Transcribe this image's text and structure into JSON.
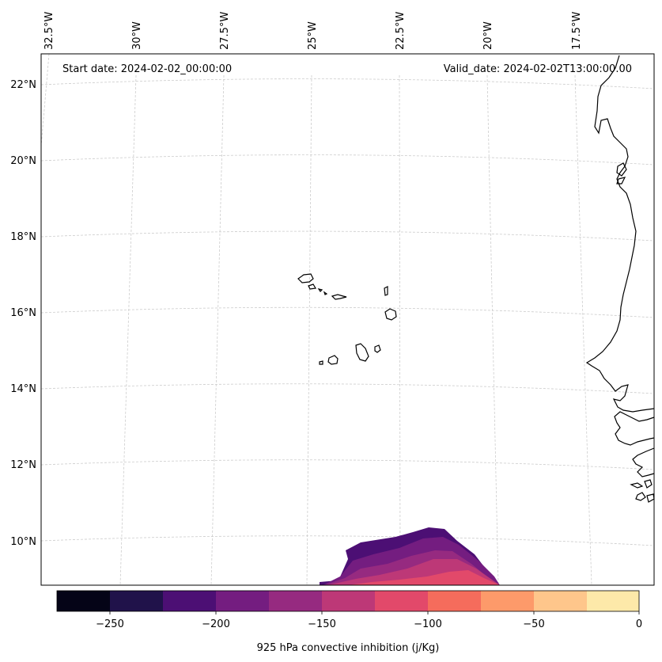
{
  "map": {
    "start_label": "Start date: 2024-02-02_00:00:00",
    "valid_label": "Valid_date: 2024-02-02T13:00:00.00",
    "lon_labels": [
      "32.5°W",
      "30°W",
      "27.5°W",
      "25°W",
      "22.5°W",
      "20°W",
      "17.5°W"
    ],
    "lat_labels": [
      "22°N",
      "20°N",
      "18°N",
      "16°N",
      "14°N",
      "12°N",
      "10°N"
    ],
    "colorbar": {
      "label": "925 hPa convective inhibition (j/Kg)",
      "tick_labels": [
        "−250",
        "−200",
        "−150",
        "−100",
        "−50",
        "0"
      ],
      "bins": [
        {
          "color": "#050417"
        },
        {
          "color": "#20124a"
        },
        {
          "color": "#4c0f74"
        },
        {
          "color": "#741d80"
        },
        {
          "color": "#962a80"
        },
        {
          "color": "#bd3877"
        },
        {
          "color": "#e2496a"
        },
        {
          "color": "#f56c5c"
        },
        {
          "color": "#fd9a6a"
        },
        {
          "color": "#fec68b"
        },
        {
          "color": "#fde9a9"
        }
      ]
    },
    "colors": {
      "coast": "#000000",
      "grid": "#cccccc",
      "frame": "#000000"
    }
  }
}
